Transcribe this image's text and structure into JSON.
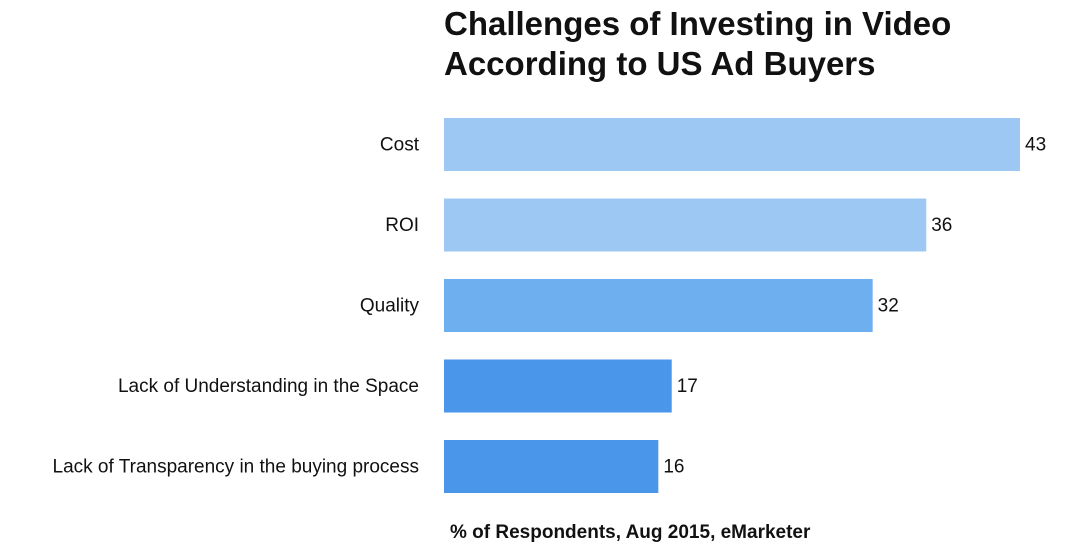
{
  "chart_data": {
    "type": "bar",
    "orientation": "horizontal",
    "title_lines": [
      "Challenges of Investing in Video",
      "According to US Ad Buyers"
    ],
    "categories": [
      "Cost",
      "ROI",
      "Quality",
      "Lack of Understanding in the Space",
      "Lack of Transparency in the buying process"
    ],
    "values": [
      43,
      36,
      32,
      17,
      16
    ],
    "bar_colors": [
      "#9dc8f3",
      "#9dc8f3",
      "#6eaff0",
      "#4a96ea",
      "#4a96ea"
    ],
    "xlim": [
      0,
      43
    ],
    "grid": false,
    "legend": "none",
    "footnote": "% of Respondents, Aug 2015, eMarketer"
  }
}
